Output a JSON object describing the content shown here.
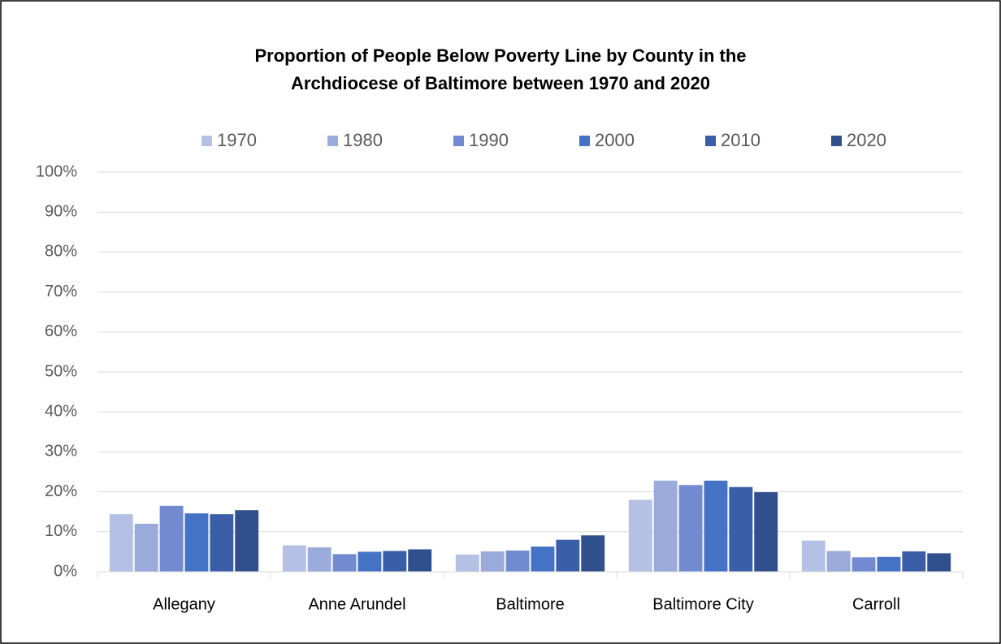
{
  "chart_data": {
    "type": "bar",
    "title": "Proportion of People Below Poverty Line by County in the Archdiocese of Baltimore between 1970 and 2020",
    "title_lines": [
      "Proportion of People Below Poverty Line by County in the",
      "Archdiocese of Baltimore between 1970 and 2020"
    ],
    "categories": [
      "Allegany",
      "Anne Arundel",
      "Baltimore",
      "Baltimore City",
      "Carroll"
    ],
    "series": [
      {
        "name": "1970",
        "color": "#b4c1e4",
        "values": [
          14.4,
          6.6,
          4.3,
          18.0,
          7.8
        ]
      },
      {
        "name": "1980",
        "color": "#9aaadb",
        "values": [
          12.0,
          6.1,
          5.1,
          22.8,
          5.2
        ]
      },
      {
        "name": "1990",
        "color": "#728ad0",
        "values": [
          16.5,
          4.4,
          5.3,
          21.7,
          3.6
        ]
      },
      {
        "name": "2000",
        "color": "#4472c4",
        "values": [
          14.6,
          5.0,
          6.3,
          22.8,
          3.7
        ]
      },
      {
        "name": "2010",
        "color": "#3a5fa8",
        "values": [
          14.4,
          5.2,
          8.0,
          21.2,
          5.1
        ]
      },
      {
        "name": "2020",
        "color": "#2f4f8d",
        "values": [
          15.4,
          5.6,
          9.1,
          19.9,
          4.6
        ]
      }
    ],
    "ylim": [
      0,
      100
    ],
    "yticks": [
      {
        "value": 0,
        "label": "0%"
      },
      {
        "value": 10,
        "label": "10%"
      },
      {
        "value": 20,
        "label": "20%"
      },
      {
        "value": 30,
        "label": "30%"
      },
      {
        "value": 40,
        "label": "40%"
      },
      {
        "value": 50,
        "label": "50%"
      },
      {
        "value": 60,
        "label": "60%"
      },
      {
        "value": 70,
        "label": "70%"
      },
      {
        "value": 80,
        "label": "80%"
      },
      {
        "value": 90,
        "label": "90%"
      },
      {
        "value": 100,
        "label": "100%"
      }
    ],
    "grid": true,
    "legend": "top"
  }
}
